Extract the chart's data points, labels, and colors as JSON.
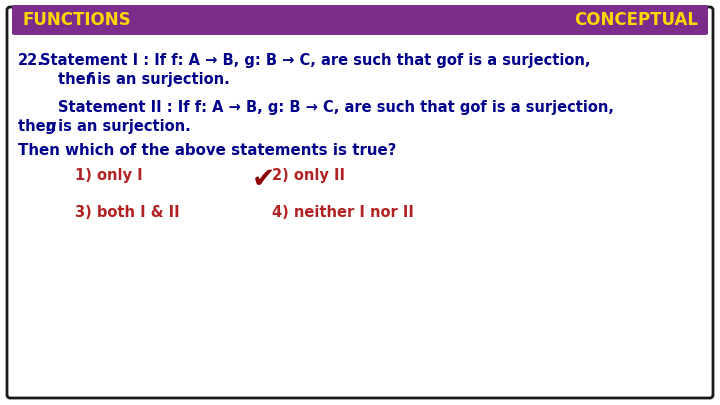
{
  "background_color": "#ffffff",
  "border_color": "#1a1a1a",
  "header_bg_color": "#7B2D8B",
  "header_text_color": "#FFD700",
  "header_left": "FUNCTIONS",
  "header_right": "CONCEPTUAL",
  "text_color_blue": "#00008B",
  "text_color_red": "#B22222",
  "checkmark_color": "#8B0000",
  "q_number": "22.",
  "s1_l1": "Statement I : If f: A → B, g: B → C, are such that gof is a surjection,",
  "s1_l2_a": "then ",
  "s1_l2_b": "f",
  "s1_l2_c": " is an surjection.",
  "s2_l1": "Statement II : If f: A → B, g: B → C, are such that gof is a surjection,",
  "s2_l2_a": "then ",
  "s2_l2_b": "g",
  "s2_l2_c": " is an surjection.",
  "question_line": "Then which of the above statements is true?",
  "opt1": "1) only I",
  "opt2": "2) only II",
  "opt3": "3) both I & II",
  "opt4": "4) neither I nor II",
  "body_fontsize": 10.5,
  "header_fontsize": 12,
  "question_fontsize": 10.8,
  "option_fontsize": 10.5
}
